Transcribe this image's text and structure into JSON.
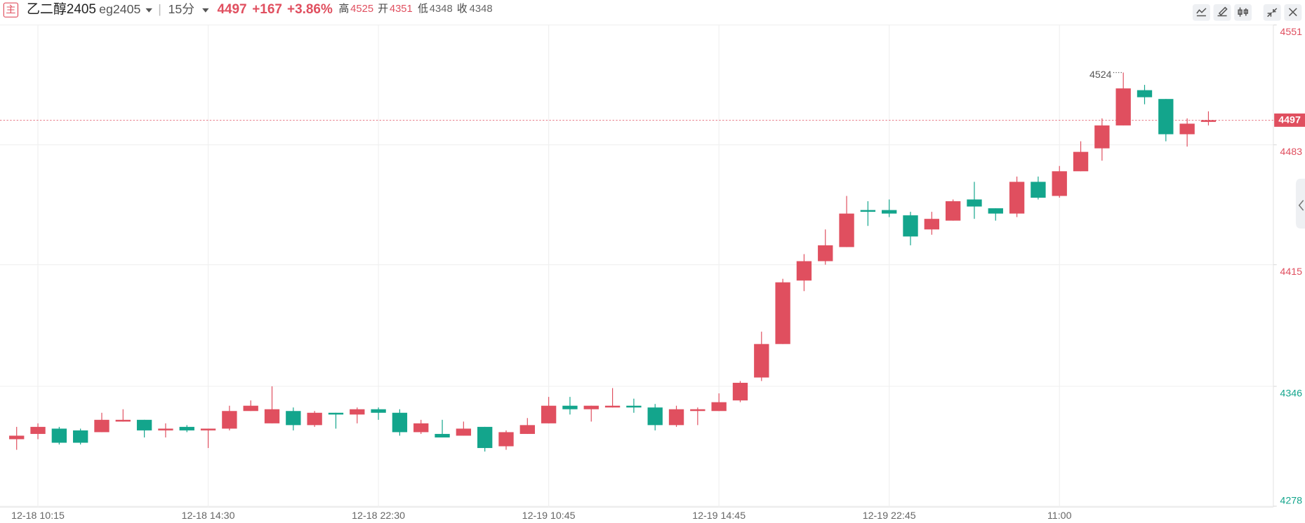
{
  "header": {
    "icon": "主",
    "name": "乙二醇2405",
    "code": "eg2405",
    "separator": "|",
    "period": "15分",
    "price": "4497",
    "change": "+167",
    "change_pct": "+3.86%",
    "stats": [
      {
        "label": "高",
        "value": "4525"
      },
      {
        "label": "开",
        "value": "4351"
      },
      {
        "label": "低",
        "value": "4348"
      },
      {
        "label": "收",
        "value": "4348"
      }
    ]
  },
  "chart_data": {
    "type": "candlestick",
    "categories": [
      null,
      "12-18 10:15",
      null,
      null,
      null,
      null,
      null,
      null,
      null,
      "12-18 14:30",
      null,
      null,
      null,
      null,
      null,
      null,
      null,
      "12-18 22:30",
      null,
      null,
      null,
      null,
      null,
      null,
      null,
      "12-19 10:45",
      null,
      null,
      null,
      null,
      null,
      null,
      null,
      "12-19 14:45",
      null,
      null,
      null,
      null,
      null,
      null,
      null,
      "12-19 22:45",
      null,
      null,
      null,
      null,
      null,
      null,
      null,
      "11:00",
      null,
      null,
      null,
      null,
      null,
      null,
      null
    ],
    "open": [
      4316,
      4319,
      4322,
      4321,
      4320,
      4326,
      4327,
      4321,
      4323,
      4321,
      4322,
      4332,
      4325,
      4332,
      4324,
      4331,
      4330,
      4333,
      4331,
      4320,
      4319,
      4318,
      4323,
      4312,
      4319,
      4325,
      4335,
      4333,
      4334,
      4335,
      4334,
      4324,
      4332,
      4332,
      4338,
      4351,
      4370,
      4406,
      4417,
      4425,
      4446,
      4446,
      4443,
      4435,
      4440,
      4452,
      4447,
      4444,
      4462,
      4454,
      4468,
      4481,
      4494,
      4514,
      4509,
      4489,
      4496
    ],
    "high": [
      4323,
      4325,
      4323,
      4322,
      4331,
      4333,
      4327,
      4325,
      4324,
      4322,
      4335,
      4338,
      4346,
      4334,
      4332,
      4331,
      4334,
      4334,
      4333,
      4327,
      4327,
      4326,
      4323,
      4321,
      4328,
      4340,
      4340,
      4335,
      4345,
      4339,
      4336,
      4335,
      4334,
      4342,
      4349,
      4377,
      4407,
      4421,
      4435,
      4454,
      4451,
      4452,
      4445,
      4445,
      4452,
      4462,
      4447,
      4465,
      4465,
      4471,
      4485,
      4498,
      4524,
      4517,
      4509,
      4498,
      4502
    ],
    "low": [
      4310,
      4316,
      4313,
      4313,
      4320,
      4326,
      4317,
      4317,
      4320,
      4311,
      4321,
      4332,
      4325,
      4321,
      4323,
      4322,
      4325,
      4327,
      4318,
      4319,
      4317,
      4318,
      4309,
      4310,
      4319,
      4325,
      4330,
      4326,
      4334,
      4331,
      4321,
      4323,
      4324,
      4332,
      4337,
      4349,
      4370,
      4400,
      4415,
      4425,
      4437,
      4442,
      4426,
      4432,
      4440,
      4441,
      4440,
      4442,
      4452,
      4453,
      4468,
      4474,
      4494,
      4506,
      4485,
      4482,
      4494
    ],
    "close": [
      4318,
      4323,
      4314,
      4314,
      4327,
      4327,
      4321,
      4322,
      4321,
      4322,
      4332,
      4335,
      4333,
      4324,
      4331,
      4330,
      4333,
      4331,
      4320,
      4325,
      4317,
      4322,
      4311,
      4320,
      4324,
      4335,
      4333,
      4335,
      4335,
      4334,
      4324,
      4333,
      4333,
      4337,
      4348,
      4370,
      4405,
      4417,
      4426,
      4444,
      4445,
      4444,
      4431,
      4441,
      4451,
      4448,
      4444,
      4462,
      4453,
      4468,
      4479,
      4494,
      4515,
      4510,
      4489,
      4495,
      4497
    ],
    "up_color": "#e04f5f",
    "down_color": "#13a58c",
    "ylim": [
      4278,
      4551
    ],
    "yticks": [
      4278,
      4346,
      4415,
      4483,
      4551
    ],
    "ytick_colors": [
      "#13a58c",
      "#13a58c",
      "#e04f5f",
      "#e04f5f",
      "#e04f5f"
    ],
    "last_price": 4497,
    "grid": true
  }
}
